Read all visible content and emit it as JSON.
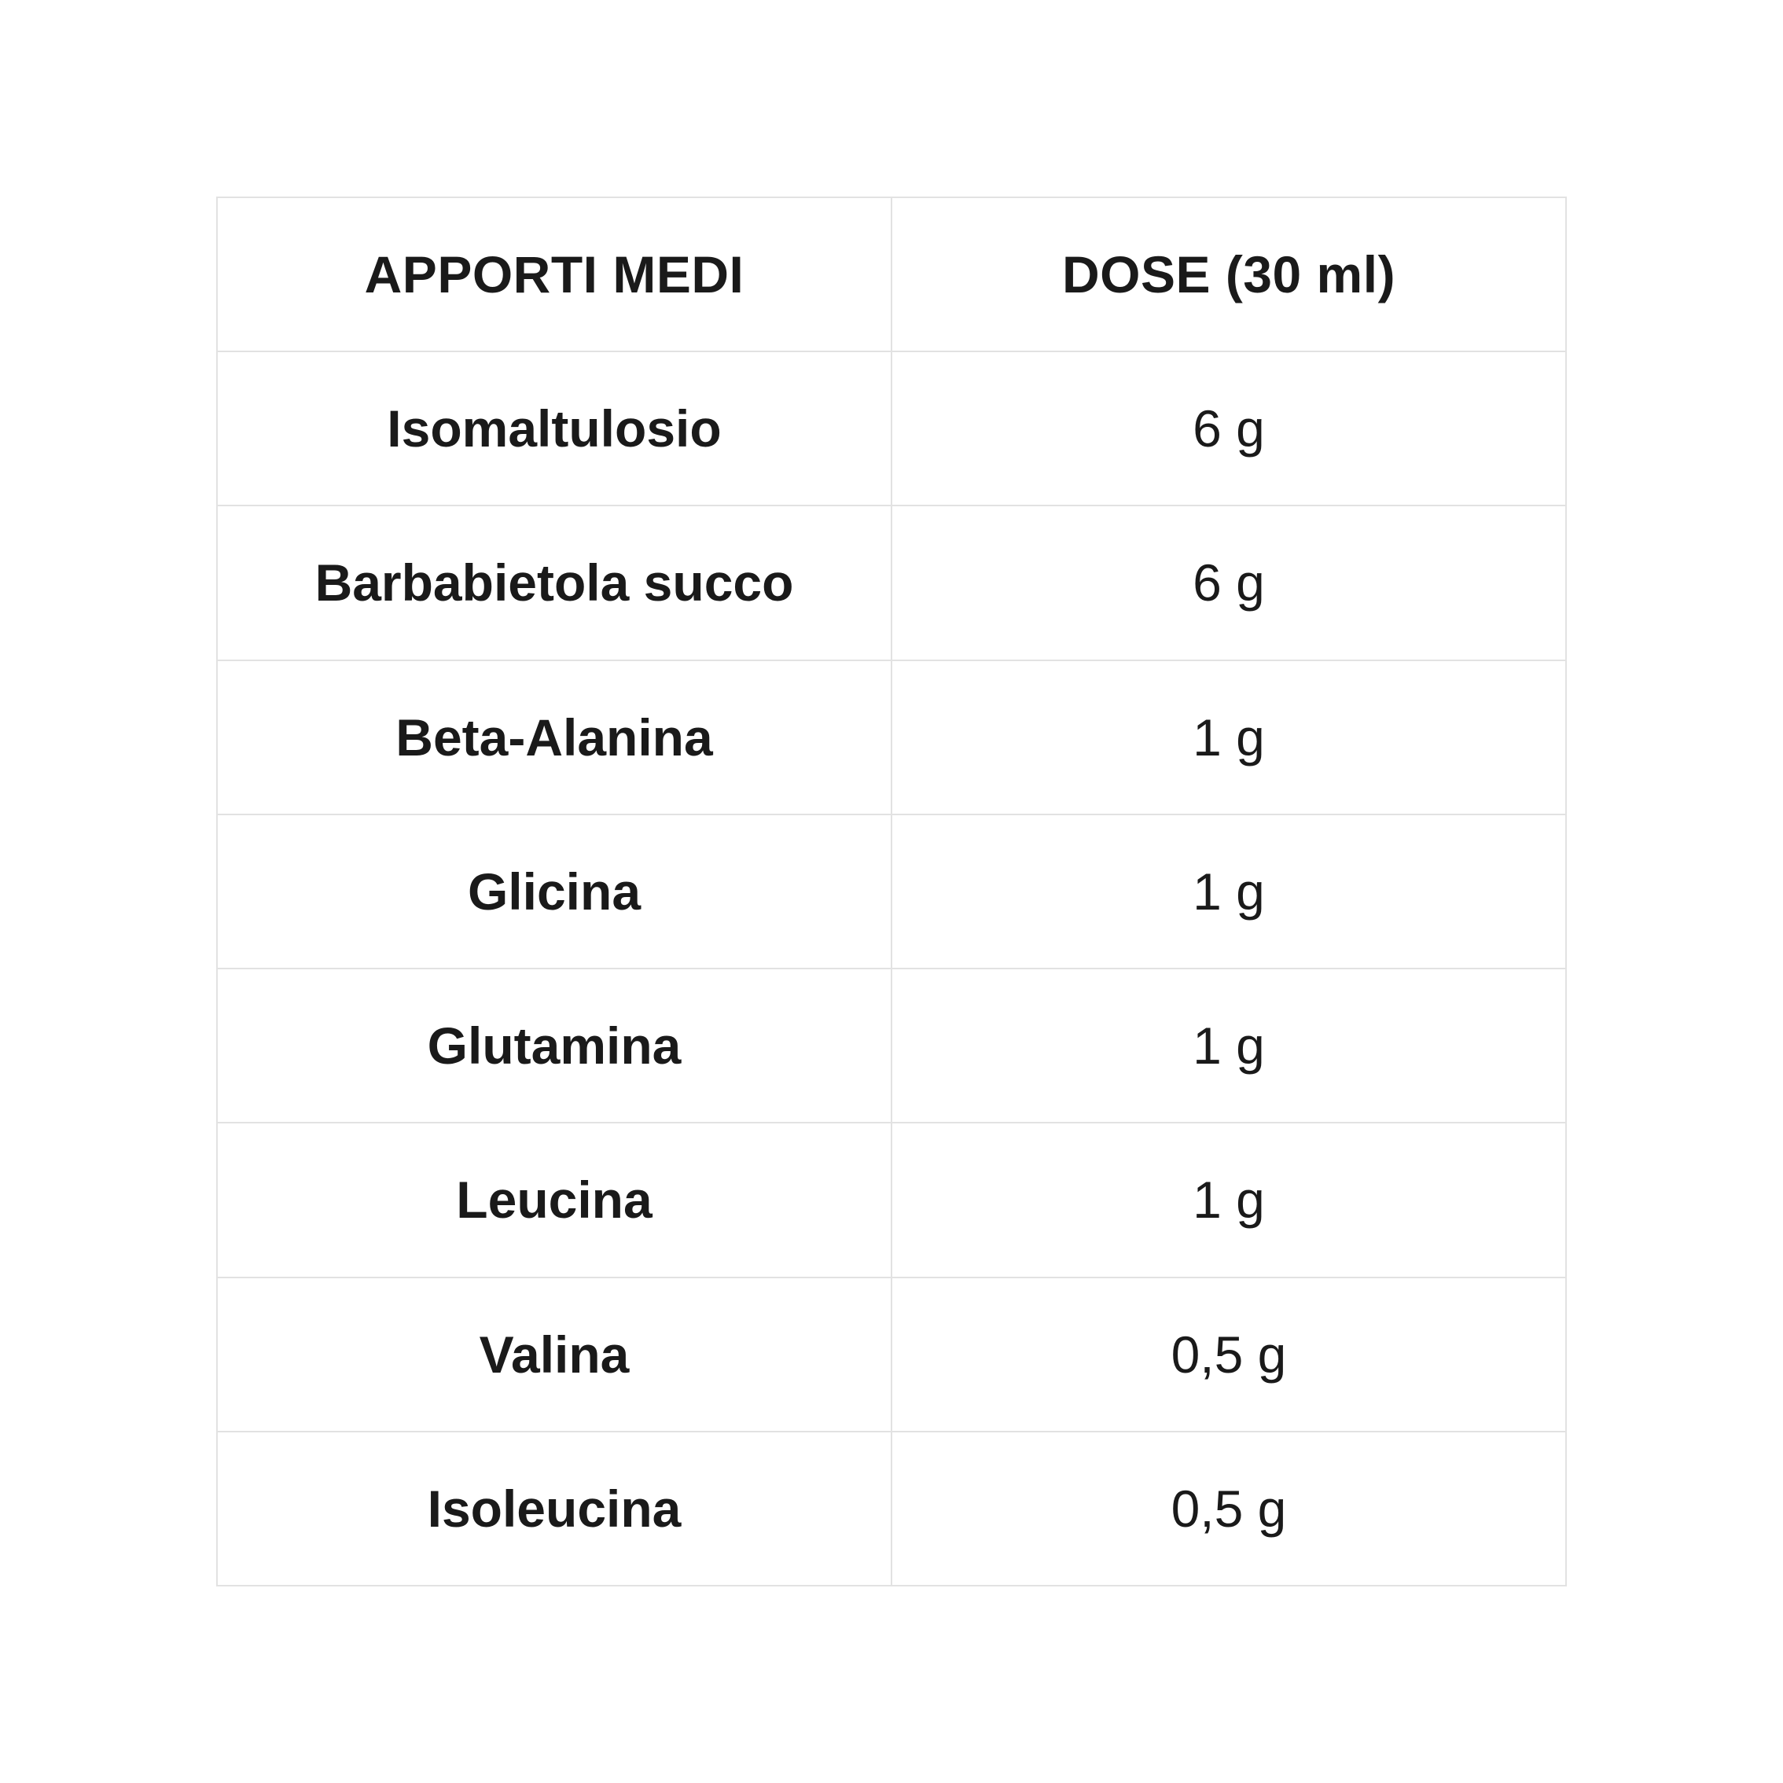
{
  "theme": {
    "border_color": "#e2e2e2",
    "text_color": "#1a1a1a",
    "background_color": "#ffffff"
  },
  "table": {
    "headers": {
      "col1": "APPORTI MEDI",
      "col2": "DOSE (30 ml)"
    },
    "rows": [
      {
        "label": "Isomaltulosio",
        "value": "6 g"
      },
      {
        "label": "Barbabietola succo",
        "value": "6 g"
      },
      {
        "label": "Beta-Alanina",
        "value": "1 g"
      },
      {
        "label": "Glicina",
        "value": "1 g"
      },
      {
        "label": "Glutamina",
        "value": "1 g"
      },
      {
        "label": "Leucina",
        "value": "1 g"
      },
      {
        "label": "Valina",
        "value": "0,5 g"
      },
      {
        "label": "Isoleucina",
        "value": "0,5 g"
      }
    ]
  }
}
